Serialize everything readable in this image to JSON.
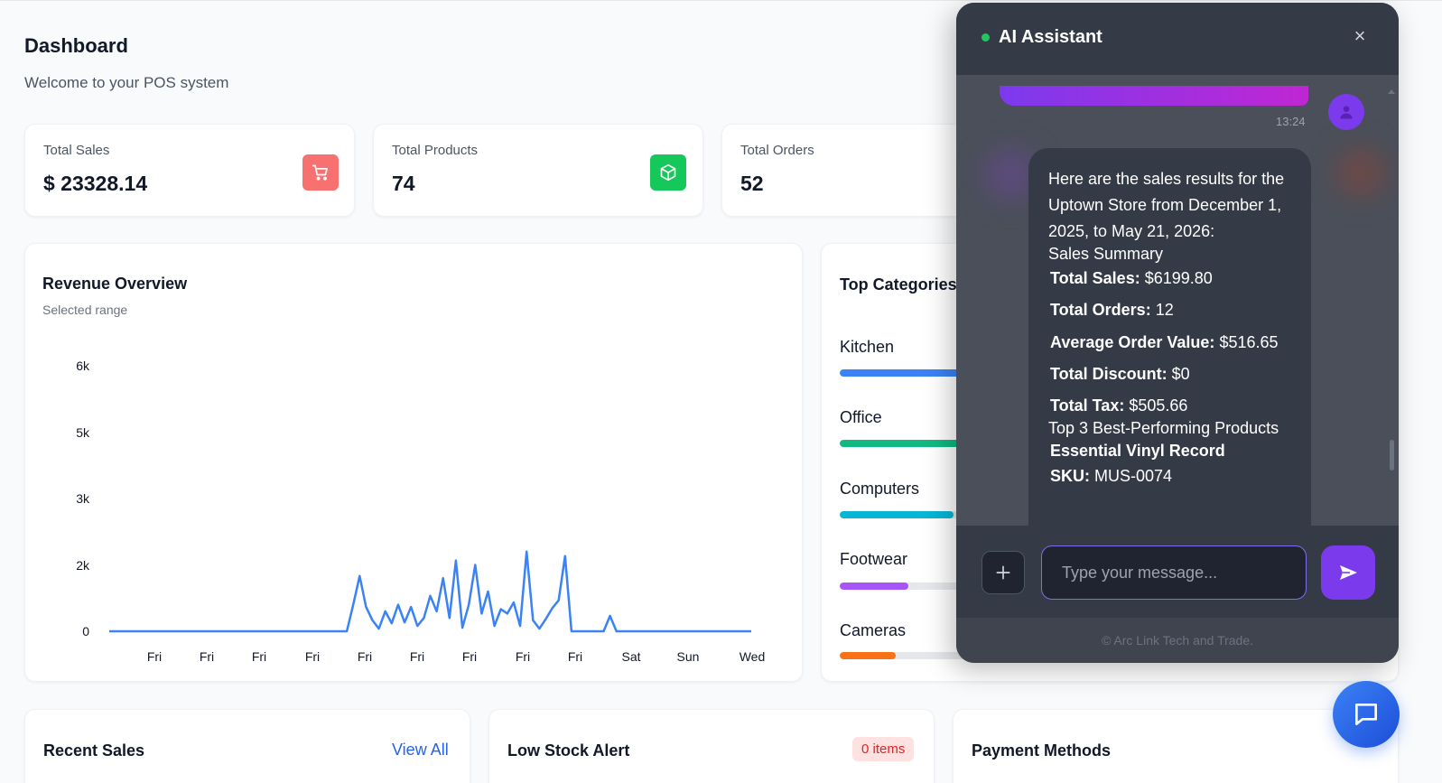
{
  "header": {
    "title": "Dashboard",
    "subtitle": "Welcome to your POS system"
  },
  "stats": [
    {
      "label": "Total Sales",
      "value": "$ 23328.14",
      "icon": "shopping-cart-icon",
      "color": "#f87171"
    },
    {
      "label": "Total Products",
      "value": "74",
      "icon": "package-icon",
      "color": "#16a34a"
    },
    {
      "label": "Total Orders",
      "value": "52"
    }
  ],
  "revenue": {
    "title": "Revenue Overview",
    "subtitle": "Selected range"
  },
  "chart_data": {
    "type": "line",
    "title": "Revenue Overview",
    "xlabel": "",
    "ylabel": "",
    "ylim": [
      0,
      6000
    ],
    "y_ticks": [
      "6k",
      "5k",
      "3k",
      "2k",
      "0"
    ],
    "x_ticks": [
      "Fri",
      "Fri",
      "Fri",
      "Fri",
      "Fri",
      "Fri",
      "Fri",
      "Fri",
      "Fri",
      "Sat",
      "Sun",
      "Wed"
    ],
    "series": [
      {
        "color": "#3b82f6",
        "x": [
          0,
          37,
          38,
          39,
          40,
          41,
          42,
          43,
          44,
          45,
          46,
          47,
          48,
          49,
          50,
          51,
          52,
          53,
          54,
          55,
          56,
          57,
          58,
          59,
          60,
          61,
          62,
          63,
          64,
          65,
          66,
          67,
          68,
          69,
          70,
          71,
          72,
          73,
          74,
          75,
          76,
          77,
          78,
          79,
          80,
          81,
          82,
          83,
          84,
          85,
          86,
          87,
          88,
          89,
          90,
          91,
          92,
          93,
          94,
          95,
          96,
          97,
          98,
          99,
          100
        ],
        "y": [
          0,
          0,
          600,
          1250,
          550,
          250,
          60,
          450,
          180,
          600,
          200,
          550,
          120,
          300,
          800,
          450,
          1200,
          300,
          1600,
          80,
          600,
          1500,
          400,
          900,
          120,
          500,
          400,
          650,
          120,
          1800,
          250,
          60,
          280,
          520,
          700,
          1700,
          0,
          0,
          0,
          0,
          0,
          0,
          350,
          0,
          0,
          0,
          0,
          0,
          0,
          0,
          0,
          0,
          0,
          0,
          0,
          0,
          0,
          0,
          0,
          0,
          0,
          0,
          0,
          0,
          0
        ]
      }
    ]
  },
  "categories": {
    "title": "Top Categories",
    "items": [
      {
        "label": "Kitchen",
        "value": 0.95,
        "color": "#3b82f6"
      },
      {
        "label": "Office",
        "value": 0.9,
        "color": "#10b981"
      },
      {
        "label": "Computers",
        "value": 0.63,
        "color": "#06b6d4"
      },
      {
        "label": "Footwear",
        "value": 0.38,
        "color": "#a855f7"
      },
      {
        "label": "Cameras",
        "value": 0.31,
        "color": "#f97316"
      }
    ]
  },
  "bottom": {
    "recent_sales": "Recent Sales",
    "view_all": "View All",
    "low_stock": "Low Stock Alert",
    "low_stock_badge": "0 items",
    "payment_methods": "Payment Methods"
  },
  "assistant": {
    "title": "AI Assistant",
    "close": "×",
    "time": "13:24",
    "intro": "Here are the sales results for the Uptown Store from December 1, 2025, to May 21, 2026:",
    "summary_heading": "Sales Summary",
    "metrics": [
      {
        "k": "Total Sales:",
        "v": "$6199.80"
      },
      {
        "k": "Total Orders:",
        "v": "12"
      },
      {
        "k": "Average Order Value:",
        "v": "$516.65"
      },
      {
        "k": "Total Discount:",
        "v": "$0"
      },
      {
        "k": "Total Tax:",
        "v": "$505.66"
      }
    ],
    "products_heading": "Top 3 Best-Performing Products",
    "product_name": "Essential Vinyl Record",
    "sku_label": "SKU:",
    "sku_value": "MUS-0074",
    "input_placeholder": "Type your message...",
    "footer": "© Arc Link Tech and Trade."
  }
}
